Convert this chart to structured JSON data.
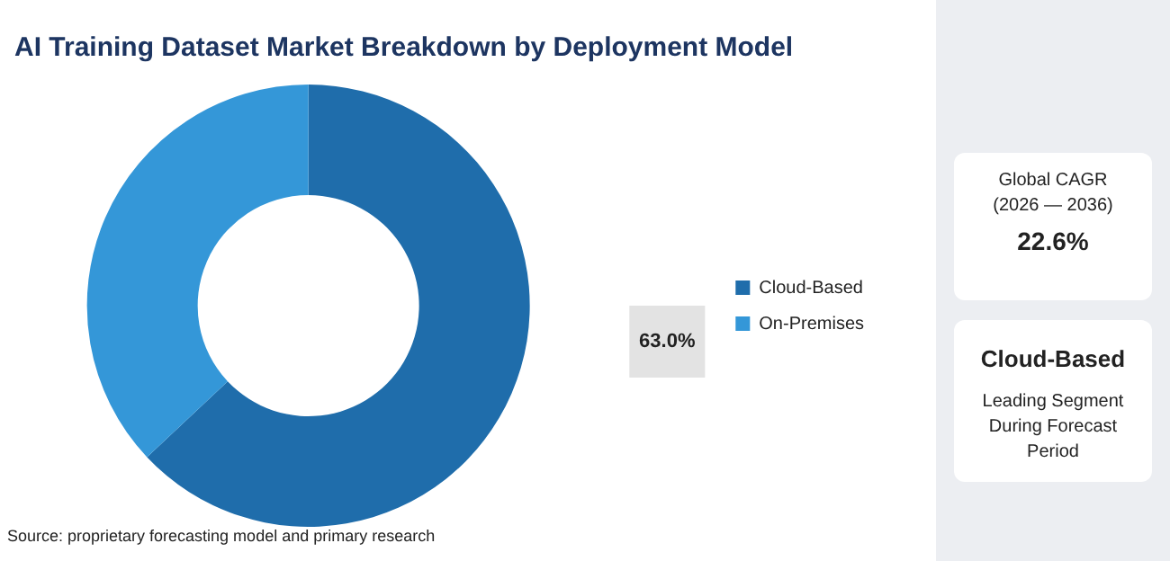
{
  "chart_data": [
    {
      "type": "donut",
      "title": "AI Training Dataset Market Breakdown by Deployment Model",
      "categories": [
        "Cloud-Based",
        "On-Premises"
      ],
      "values": [
        63,
        37
      ],
      "colors": [
        "#1f6dab",
        "#3497d8"
      ],
      "value_labels": [
        "63.0%",
        null
      ],
      "legend": "right",
      "annotations": [
        "Source: proprietary forecasting model and primary research"
      ]
    },
    {
      "type": "other",
      "annotations": [
        "Global CAGR",
        "(2026 — 2036)",
        "22.6%",
        "Cloud-Based",
        "Leading Segment During Forecast Period"
      ]
    }
  ]
}
